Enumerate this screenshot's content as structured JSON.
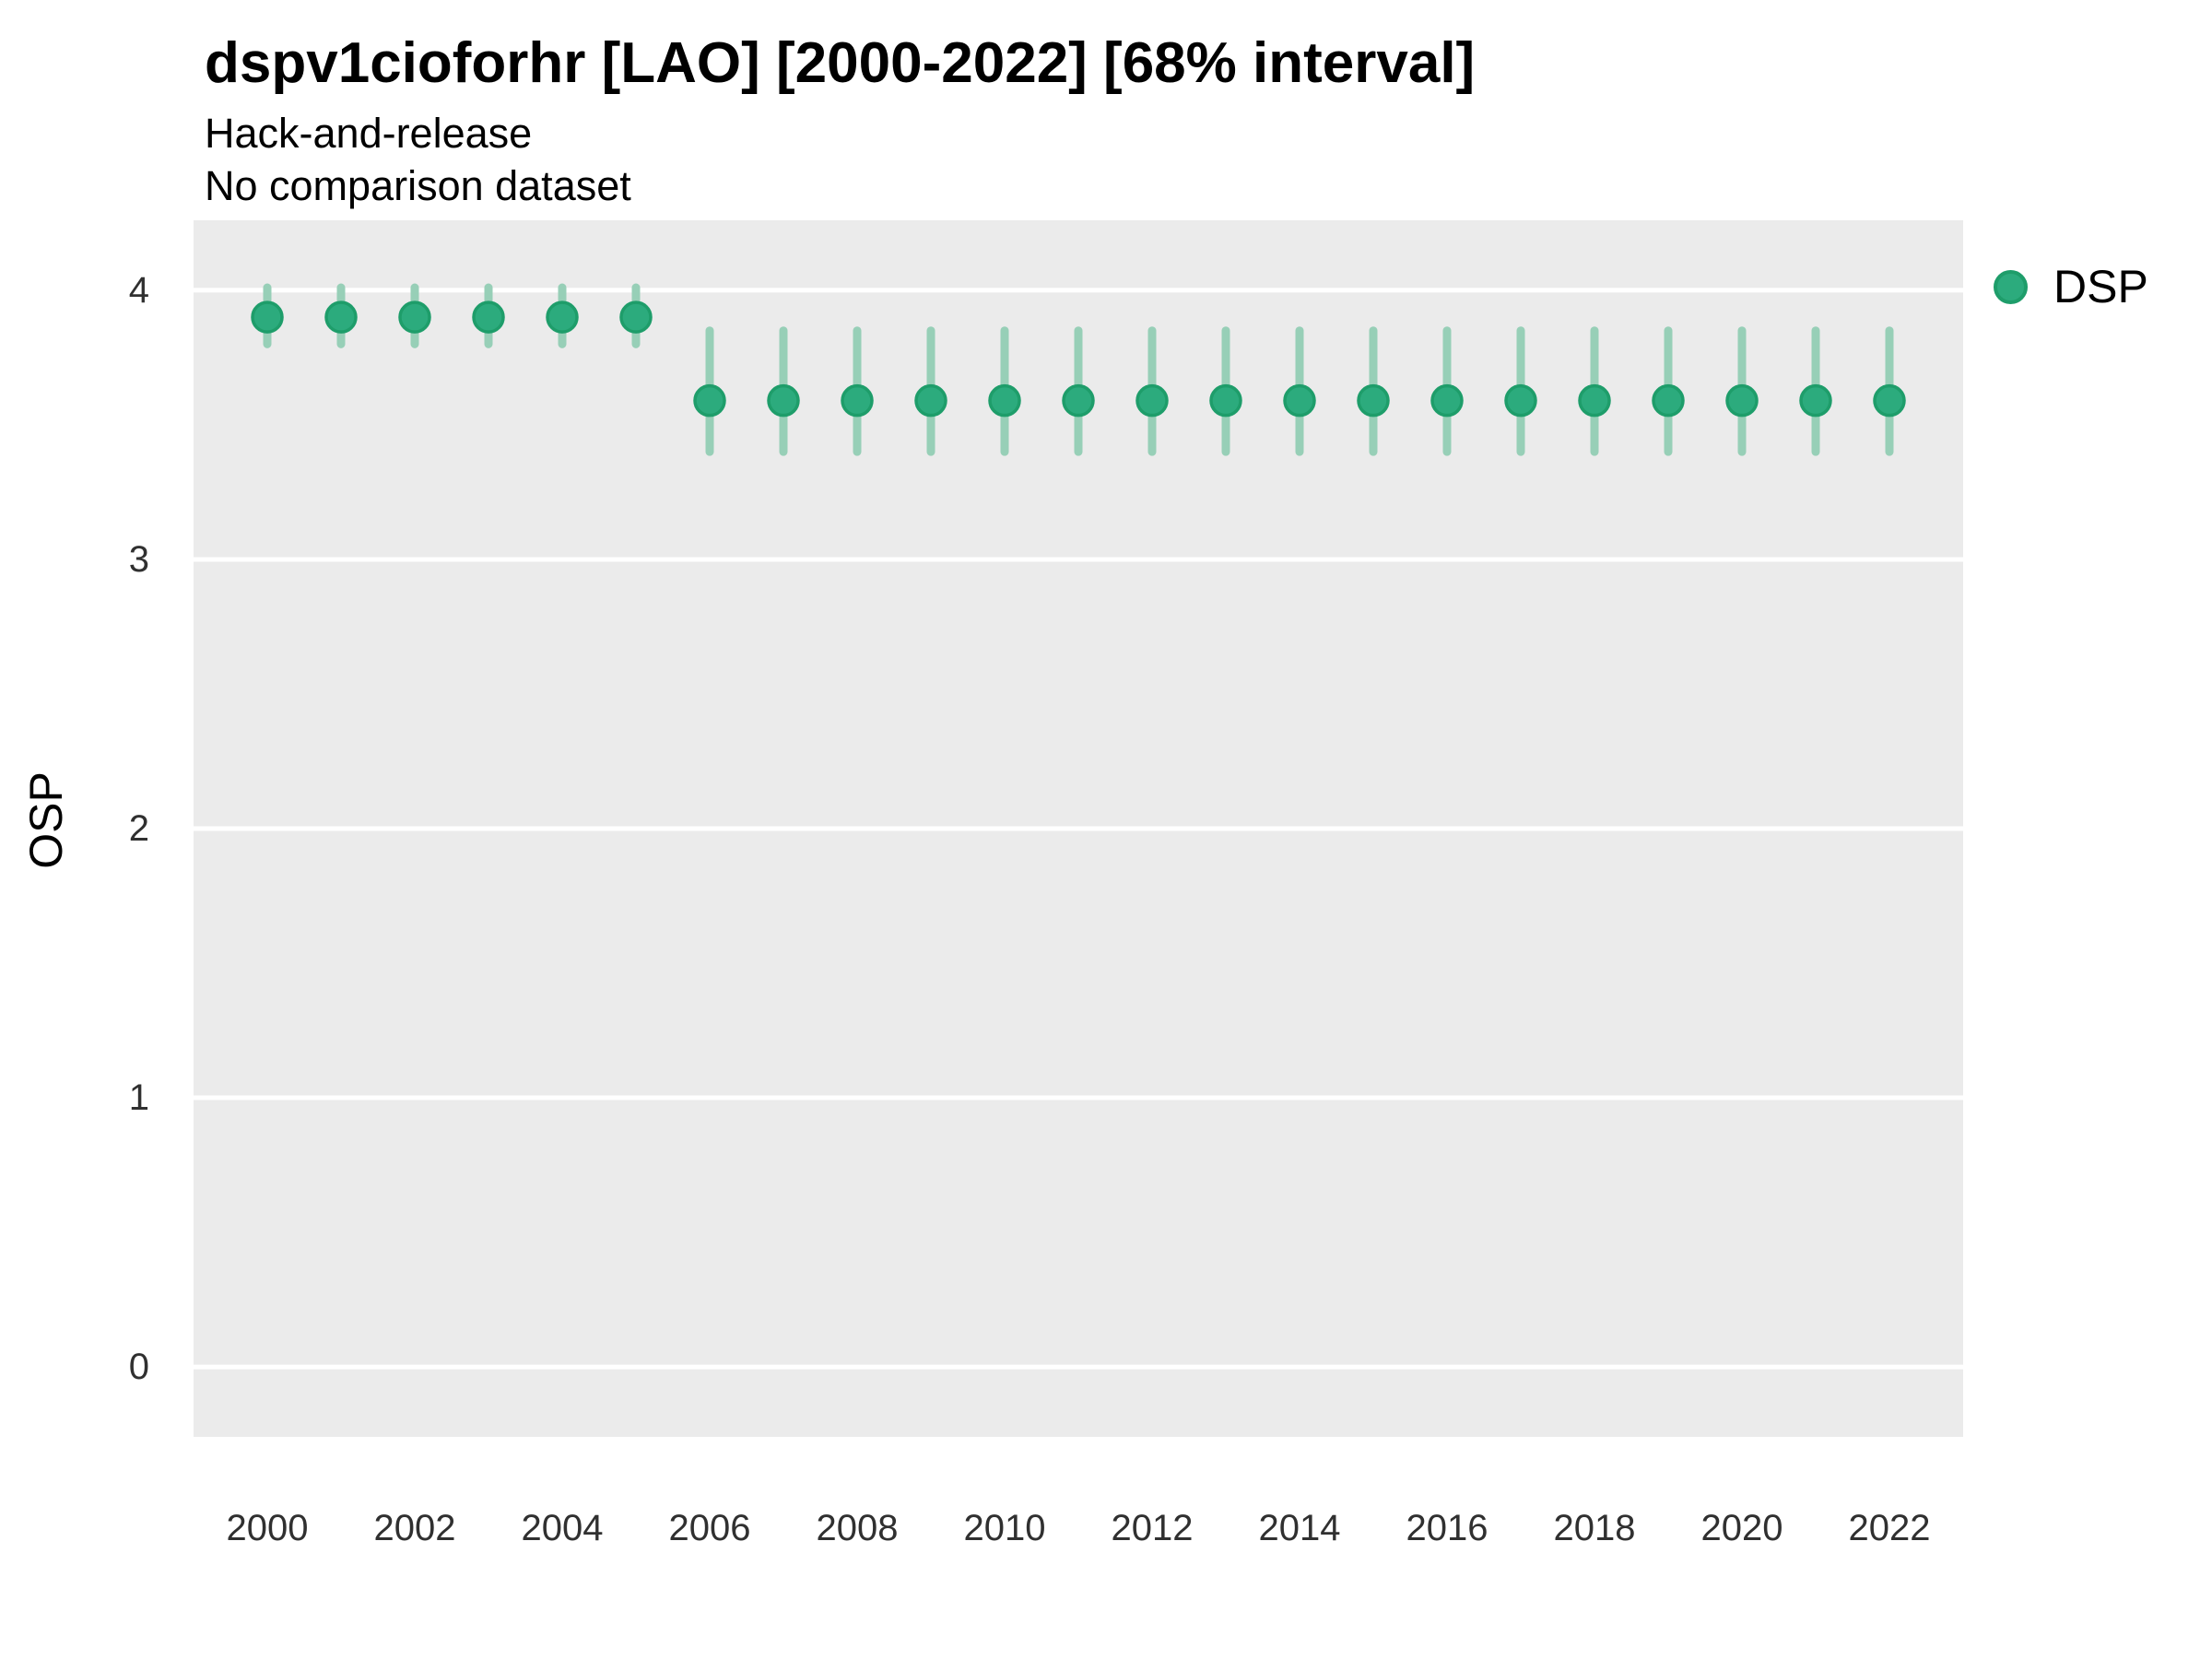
{
  "chart_data": {
    "type": "scatter",
    "title": "dspv1cioforhr [LAO] [2000-2022] [68% interval]",
    "subtitle": "Hack-and-release",
    "subtitle2": "No comparison dataset",
    "xlabel": "",
    "ylabel": "OSP",
    "interval_level": "68%",
    "grid": "horizontal-major-only",
    "legend_position": "right-top",
    "x_ticks": [
      2000,
      2002,
      2004,
      2006,
      2008,
      2010,
      2012,
      2014,
      2016,
      2018,
      2020,
      2022
    ],
    "y_ticks": [
      4,
      3,
      2,
      1,
      0
    ],
    "xlim": [
      1999,
      2023
    ],
    "ylim": [
      -0.26,
      4.26
    ],
    "colors": {
      "panel_bg": "#EBEBEB",
      "gridline": "#FFFFFF",
      "point_fill": "#2CAB7D",
      "point_stroke": "#1E9D6A",
      "interval_line": "#97CFB7",
      "tick_text": "#303030",
      "text": "#000000"
    },
    "legend": {
      "entries": [
        {
          "label": "DSP",
          "color": "#2CAB7D"
        }
      ]
    },
    "series": [
      {
        "name": "DSP",
        "points": [
          {
            "x": 2000,
            "y": 3.9,
            "lo": 3.8,
            "hi": 4.01
          },
          {
            "x": 2001,
            "y": 3.9,
            "lo": 3.8,
            "hi": 4.01
          },
          {
            "x": 2002,
            "y": 3.9,
            "lo": 3.8,
            "hi": 4.01
          },
          {
            "x": 2003,
            "y": 3.9,
            "lo": 3.8,
            "hi": 4.01
          },
          {
            "x": 2004,
            "y": 3.9,
            "lo": 3.8,
            "hi": 4.01
          },
          {
            "x": 2005,
            "y": 3.9,
            "lo": 3.8,
            "hi": 4.01
          },
          {
            "x": 2006,
            "y": 3.59,
            "lo": 3.4,
            "hi": 3.85
          },
          {
            "x": 2007,
            "y": 3.59,
            "lo": 3.4,
            "hi": 3.85
          },
          {
            "x": 2008,
            "y": 3.59,
            "lo": 3.4,
            "hi": 3.85
          },
          {
            "x": 2009,
            "y": 3.59,
            "lo": 3.4,
            "hi": 3.85
          },
          {
            "x": 2010,
            "y": 3.59,
            "lo": 3.4,
            "hi": 3.85
          },
          {
            "x": 2011,
            "y": 3.59,
            "lo": 3.4,
            "hi": 3.85
          },
          {
            "x": 2012,
            "y": 3.59,
            "lo": 3.4,
            "hi": 3.85
          },
          {
            "x": 2013,
            "y": 3.59,
            "lo": 3.4,
            "hi": 3.85
          },
          {
            "x": 2014,
            "y": 3.59,
            "lo": 3.4,
            "hi": 3.85
          },
          {
            "x": 2015,
            "y": 3.59,
            "lo": 3.4,
            "hi": 3.85
          },
          {
            "x": 2016,
            "y": 3.59,
            "lo": 3.4,
            "hi": 3.85
          },
          {
            "x": 2017,
            "y": 3.59,
            "lo": 3.4,
            "hi": 3.85
          },
          {
            "x": 2018,
            "y": 3.59,
            "lo": 3.4,
            "hi": 3.85
          },
          {
            "x": 2019,
            "y": 3.59,
            "lo": 3.4,
            "hi": 3.85
          },
          {
            "x": 2020,
            "y": 3.59,
            "lo": 3.4,
            "hi": 3.85
          },
          {
            "x": 2021,
            "y": 3.59,
            "lo": 3.4,
            "hi": 3.85
          },
          {
            "x": 2022,
            "y": 3.59,
            "lo": 3.4,
            "hi": 3.85
          }
        ]
      }
    ]
  }
}
